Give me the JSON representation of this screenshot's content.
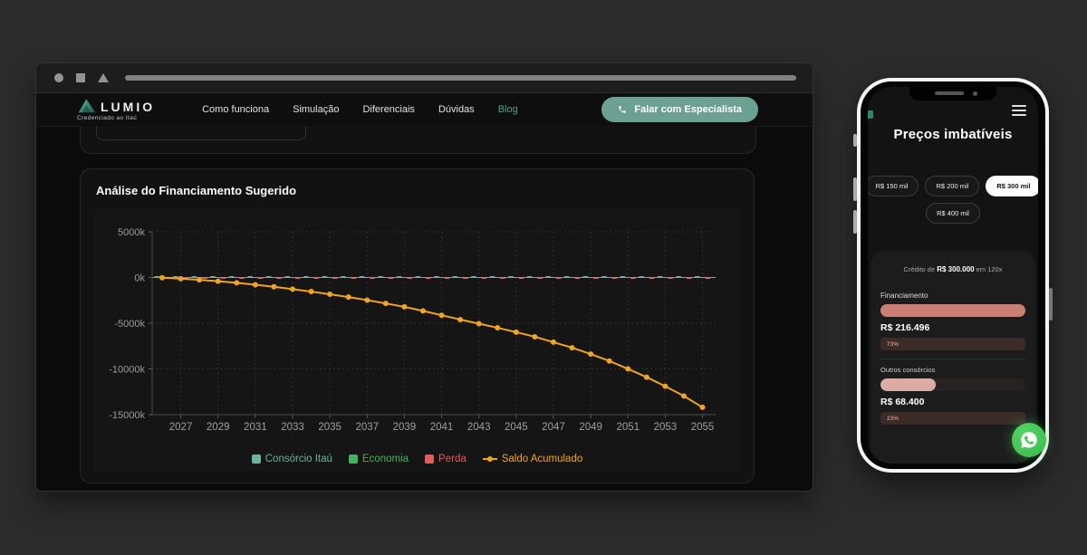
{
  "browser": {
    "window_control_icons": [
      "circle-icon",
      "square-icon",
      "triangle-icon"
    ],
    "header": {
      "logo": {
        "name": "LUMIO",
        "tagline": "Credenciado ao Itaú",
        "icon": "triangle-logo-icon",
        "accent_color": "#2e8571"
      },
      "nav": [
        {
          "label": "Como funciona",
          "active": false
        },
        {
          "label": "Simulação",
          "active": false
        },
        {
          "label": "Diferenciais",
          "active": false
        },
        {
          "label": "Dúvidas",
          "active": false
        },
        {
          "label": "Blog",
          "active": true
        }
      ],
      "cta": {
        "label": "Falar com Especialista",
        "icon": "phone-icon",
        "color": "#6ca093"
      }
    },
    "chart_card": {
      "title": "Análise do Financiamento Sugerido"
    }
  },
  "chart_data": {
    "type": "line",
    "title": "Análise do Financiamento Sugerido",
    "xlabel": "",
    "ylabel": "",
    "unit": "k (thousands)",
    "ylim": [
      -15000,
      5000
    ],
    "grid": "dotted",
    "legend_position": "bottom",
    "x": [
      2026,
      2027,
      2028,
      2029,
      2030,
      2031,
      2032,
      2033,
      2034,
      2035,
      2036,
      2037,
      2038,
      2039,
      2040,
      2041,
      2042,
      2043,
      2044,
      2045,
      2046,
      2047,
      2048,
      2049,
      2050,
      2051,
      2052,
      2053,
      2054,
      2055
    ],
    "xtick_labels": [
      "2027",
      "2029",
      "2031",
      "2033",
      "2035",
      "2037",
      "2039",
      "2041",
      "2043",
      "2045",
      "2047",
      "2049",
      "2051",
      "2053",
      "2055"
    ],
    "yticks": [
      {
        "v": 5000,
        "label": "5000k"
      },
      {
        "v": 0,
        "label": "0k"
      },
      {
        "v": -5000,
        "label": "-5000k"
      },
      {
        "v": -10000,
        "label": "-10000k"
      },
      {
        "v": -15000,
        "label": "-15000k"
      }
    ],
    "series": [
      {
        "name": "Consórcio Itaú",
        "type": "bar",
        "marker": "square",
        "color": "#6cb3a1",
        "values": [
          150,
          150,
          150,
          150,
          150,
          150,
          150,
          150,
          150,
          150,
          150,
          150,
          150,
          150,
          150,
          150,
          150,
          150,
          150,
          150,
          150,
          150,
          150,
          150,
          150,
          150,
          150,
          150,
          150,
          150
        ]
      },
      {
        "name": "Economia",
        "type": "bar",
        "marker": "square",
        "color": "#3fb45a",
        "values": [
          0,
          0,
          0,
          0,
          0,
          0,
          0,
          0,
          0,
          0,
          0,
          0,
          0,
          0,
          0,
          0,
          0,
          0,
          0,
          0,
          0,
          0,
          0,
          0,
          0,
          0,
          0,
          0,
          0,
          0
        ]
      },
      {
        "name": "Perda",
        "type": "bar",
        "marker": "square",
        "color": "#e25c5c",
        "values": [
          -150,
          -150,
          -150,
          -150,
          -150,
          -150,
          -150,
          -150,
          -150,
          -150,
          -150,
          -150,
          -150,
          -150,
          -150,
          -150,
          -150,
          -150,
          -150,
          -150,
          -150,
          -150,
          -150,
          -150,
          -150,
          -150,
          -150,
          -150,
          -150,
          -150
        ]
      },
      {
        "name": "Saldo Acumulado",
        "type": "line",
        "marker": "line-dot",
        "color": "#f0a51e",
        "values": [
          -30,
          -130,
          -260,
          -410,
          -580,
          -790,
          -1020,
          -1270,
          -1540,
          -1830,
          -2140,
          -2470,
          -2830,
          -3210,
          -3650,
          -4130,
          -4600,
          -5050,
          -5500,
          -5980,
          -6480,
          -7070,
          -7680,
          -8370,
          -9130,
          -9990,
          -10900,
          -11890,
          -12960,
          -14200
        ]
      }
    ]
  },
  "phone": {
    "menu_icon": "hamburger-menu-icon",
    "title": "Preços imbatíveis",
    "price_pills": [
      {
        "label": "R$ 150 mil",
        "selected": false
      },
      {
        "label": "R$ 200 mil",
        "selected": false
      },
      {
        "label": "R$ 300 mil",
        "selected": true
      },
      {
        "label": "R$ 400 mil",
        "selected": false
      }
    ],
    "credit_line": {
      "prefix": "Crédito de ",
      "amount": "R$ 300.000",
      "suffix": " em 120x"
    },
    "comparison": [
      {
        "label": "Financiamento",
        "value": "R$ 216.496",
        "percent": "73%",
        "bar_style": "width:100%",
        "bar_color": "#c97f74"
      },
      {
        "label": "Outros consórcios",
        "value": "R$ 68.400",
        "percent": "23%",
        "bar_style": "width:38%",
        "bar_color": "#dcaba3"
      }
    ],
    "whatsapp_icon": "whatsapp-icon",
    "whatsapp_color": "#3fc64f"
  }
}
